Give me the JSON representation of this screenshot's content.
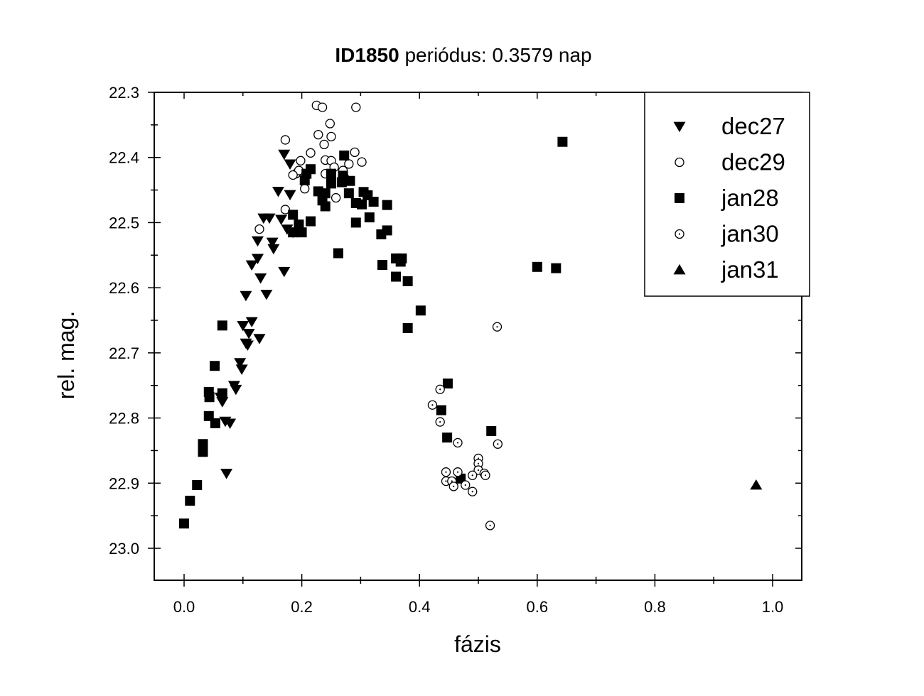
{
  "chart_data": {
    "type": "scatter",
    "title_bold": "ID1850",
    "title_rest": " periódus: 0.3579 nap",
    "xlabel": "fázis",
    "ylabel": "rel. mag.",
    "xlim": [
      -0.05,
      1.05
    ],
    "ylim": [
      22.3,
      23.05
    ],
    "y_inverted": true,
    "xticks": [
      0.0,
      0.2,
      0.4,
      0.6,
      0.8,
      1.0
    ],
    "xtick_labels": [
      "0.0",
      "0.2",
      "0.4",
      "0.6",
      "0.8",
      "1.0"
    ],
    "yticks": [
      22.3,
      22.4,
      22.5,
      22.6,
      22.7,
      22.8,
      22.9,
      23.0
    ],
    "ytick_labels": [
      "22.3",
      "22.4",
      "22.5",
      "22.6",
      "22.7",
      "22.8",
      "22.9",
      "23.0"
    ],
    "legend_position": "top-right",
    "series": [
      {
        "name": "dec27",
        "marker": "triangle-down",
        "color": "#000000",
        "points": [
          [
            0.17,
            22.395
          ],
          [
            0.18,
            22.41
          ],
          [
            0.16,
            22.452
          ],
          [
            0.18,
            22.457
          ],
          [
            0.145,
            22.493
          ],
          [
            0.135,
            22.493
          ],
          [
            0.165,
            22.495
          ],
          [
            0.175,
            22.51
          ],
          [
            0.185,
            22.515
          ],
          [
            0.125,
            22.528
          ],
          [
            0.15,
            22.53
          ],
          [
            0.152,
            22.54
          ],
          [
            0.125,
            22.555
          ],
          [
            0.115,
            22.565
          ],
          [
            0.13,
            22.585
          ],
          [
            0.17,
            22.575
          ],
          [
            0.105,
            22.612
          ],
          [
            0.14,
            22.61
          ],
          [
            0.115,
            22.652
          ],
          [
            0.1,
            22.658
          ],
          [
            0.11,
            22.67
          ],
          [
            0.105,
            22.685
          ],
          [
            0.108,
            22.688
          ],
          [
            0.128,
            22.678
          ],
          [
            0.095,
            22.715
          ],
          [
            0.098,
            22.725
          ],
          [
            0.085,
            22.75
          ],
          [
            0.088,
            22.756
          ],
          [
            0.062,
            22.768
          ],
          [
            0.065,
            22.775
          ],
          [
            0.07,
            22.805
          ],
          [
            0.078,
            22.808
          ],
          [
            0.072,
            22.885
          ]
        ]
      },
      {
        "name": "dec29",
        "marker": "circle-open",
        "color": "#000000",
        "points": [
          [
            0.225,
            22.32
          ],
          [
            0.235,
            22.323
          ],
          [
            0.292,
            22.323
          ],
          [
            0.248,
            22.348
          ],
          [
            0.228,
            22.365
          ],
          [
            0.25,
            22.368
          ],
          [
            0.172,
            22.373
          ],
          [
            0.238,
            22.38
          ],
          [
            0.215,
            22.393
          ],
          [
            0.29,
            22.392
          ],
          [
            0.198,
            22.405
          ],
          [
            0.24,
            22.404
          ],
          [
            0.25,
            22.405
          ],
          [
            0.302,
            22.407
          ],
          [
            0.28,
            22.41
          ],
          [
            0.255,
            22.415
          ],
          [
            0.19,
            22.425
          ],
          [
            0.195,
            22.42
          ],
          [
            0.185,
            22.427
          ],
          [
            0.24,
            22.425
          ],
          [
            0.27,
            22.42
          ],
          [
            0.272,
            22.43
          ],
          [
            0.205,
            22.448
          ],
          [
            0.258,
            22.462
          ],
          [
            0.172,
            22.48
          ],
          [
            0.128,
            22.51
          ]
        ]
      },
      {
        "name": "jan28",
        "marker": "square",
        "color": "#000000",
        "points": [
          [
            0.643,
            22.376
          ],
          [
            0.272,
            22.397
          ],
          [
            0.215,
            22.418
          ],
          [
            0.208,
            22.425
          ],
          [
            0.205,
            22.435
          ],
          [
            0.25,
            22.425
          ],
          [
            0.27,
            22.428
          ],
          [
            0.268,
            22.438
          ],
          [
            0.282,
            22.436
          ],
          [
            0.25,
            22.44
          ],
          [
            0.228,
            22.452
          ],
          [
            0.24,
            22.455
          ],
          [
            0.28,
            22.455
          ],
          [
            0.305,
            22.453
          ],
          [
            0.312,
            22.458
          ],
          [
            0.235,
            22.466
          ],
          [
            0.24,
            22.475
          ],
          [
            0.292,
            22.47
          ],
          [
            0.302,
            22.472
          ],
          [
            0.322,
            22.468
          ],
          [
            0.345,
            22.473
          ],
          [
            0.185,
            22.488
          ],
          [
            0.315,
            22.492
          ],
          [
            0.195,
            22.503
          ],
          [
            0.195,
            22.512
          ],
          [
            0.185,
            22.515
          ],
          [
            0.2,
            22.515
          ],
          [
            0.215,
            22.498
          ],
          [
            0.292,
            22.5
          ],
          [
            0.345,
            22.512
          ],
          [
            0.335,
            22.518
          ],
          [
            0.262,
            22.547
          ],
          [
            0.36,
            22.555
          ],
          [
            0.37,
            22.555
          ],
          [
            0.368,
            22.56
          ],
          [
            0.337,
            22.565
          ],
          [
            0.36,
            22.583
          ],
          [
            0.38,
            22.59
          ],
          [
            0.6,
            22.568
          ],
          [
            0.632,
            22.57
          ],
          [
            0.402,
            22.635
          ],
          [
            0.38,
            22.662
          ],
          [
            0.065,
            22.658
          ],
          [
            0.052,
            22.72
          ],
          [
            0.042,
            22.76
          ],
          [
            0.043,
            22.768
          ],
          [
            0.065,
            22.762
          ],
          [
            0.042,
            22.797
          ],
          [
            0.053,
            22.808
          ],
          [
            0.032,
            22.84
          ],
          [
            0.032,
            22.852
          ],
          [
            0.022,
            22.903
          ],
          [
            0.01,
            22.927
          ],
          [
            0.0,
            22.962
          ],
          [
            0.448,
            22.747
          ],
          [
            0.437,
            22.788
          ],
          [
            0.447,
            22.83
          ],
          [
            0.522,
            22.82
          ],
          [
            0.47,
            22.893
          ]
        ]
      },
      {
        "name": "jan30",
        "marker": "circle-dot",
        "color": "#000000",
        "points": [
          [
            0.532,
            22.66
          ],
          [
            0.435,
            22.756
          ],
          [
            0.422,
            22.78
          ],
          [
            0.435,
            22.806
          ],
          [
            0.465,
            22.838
          ],
          [
            0.533,
            22.84
          ],
          [
            0.5,
            22.862
          ],
          [
            0.5,
            22.87
          ],
          [
            0.5,
            22.88
          ],
          [
            0.445,
            22.883
          ],
          [
            0.465,
            22.883
          ],
          [
            0.51,
            22.885
          ],
          [
            0.512,
            22.888
          ],
          [
            0.49,
            22.888
          ],
          [
            0.445,
            22.897
          ],
          [
            0.455,
            22.897
          ],
          [
            0.458,
            22.905
          ],
          [
            0.478,
            22.903
          ],
          [
            0.49,
            22.913
          ],
          [
            0.52,
            22.965
          ]
        ]
      },
      {
        "name": "jan31",
        "marker": "triangle-up",
        "color": "#000000",
        "points": [
          [
            0.972,
            22.903
          ]
        ]
      }
    ]
  }
}
